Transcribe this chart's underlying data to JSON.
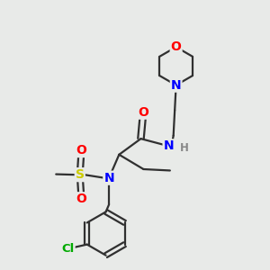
{
  "background_color": "#e8eae8",
  "atom_colors": {
    "C": "#303030",
    "N": "#0000ff",
    "O": "#ff0000",
    "S": "#cccc00",
    "Cl": "#00aa00",
    "H": "#888888"
  },
  "bond_color": "#303030",
  "bond_lw": 1.6,
  "figsize": [
    3.0,
    3.0
  ],
  "dpi": 100,
  "xlim": [
    0,
    10
  ],
  "ylim": [
    0,
    10
  ]
}
